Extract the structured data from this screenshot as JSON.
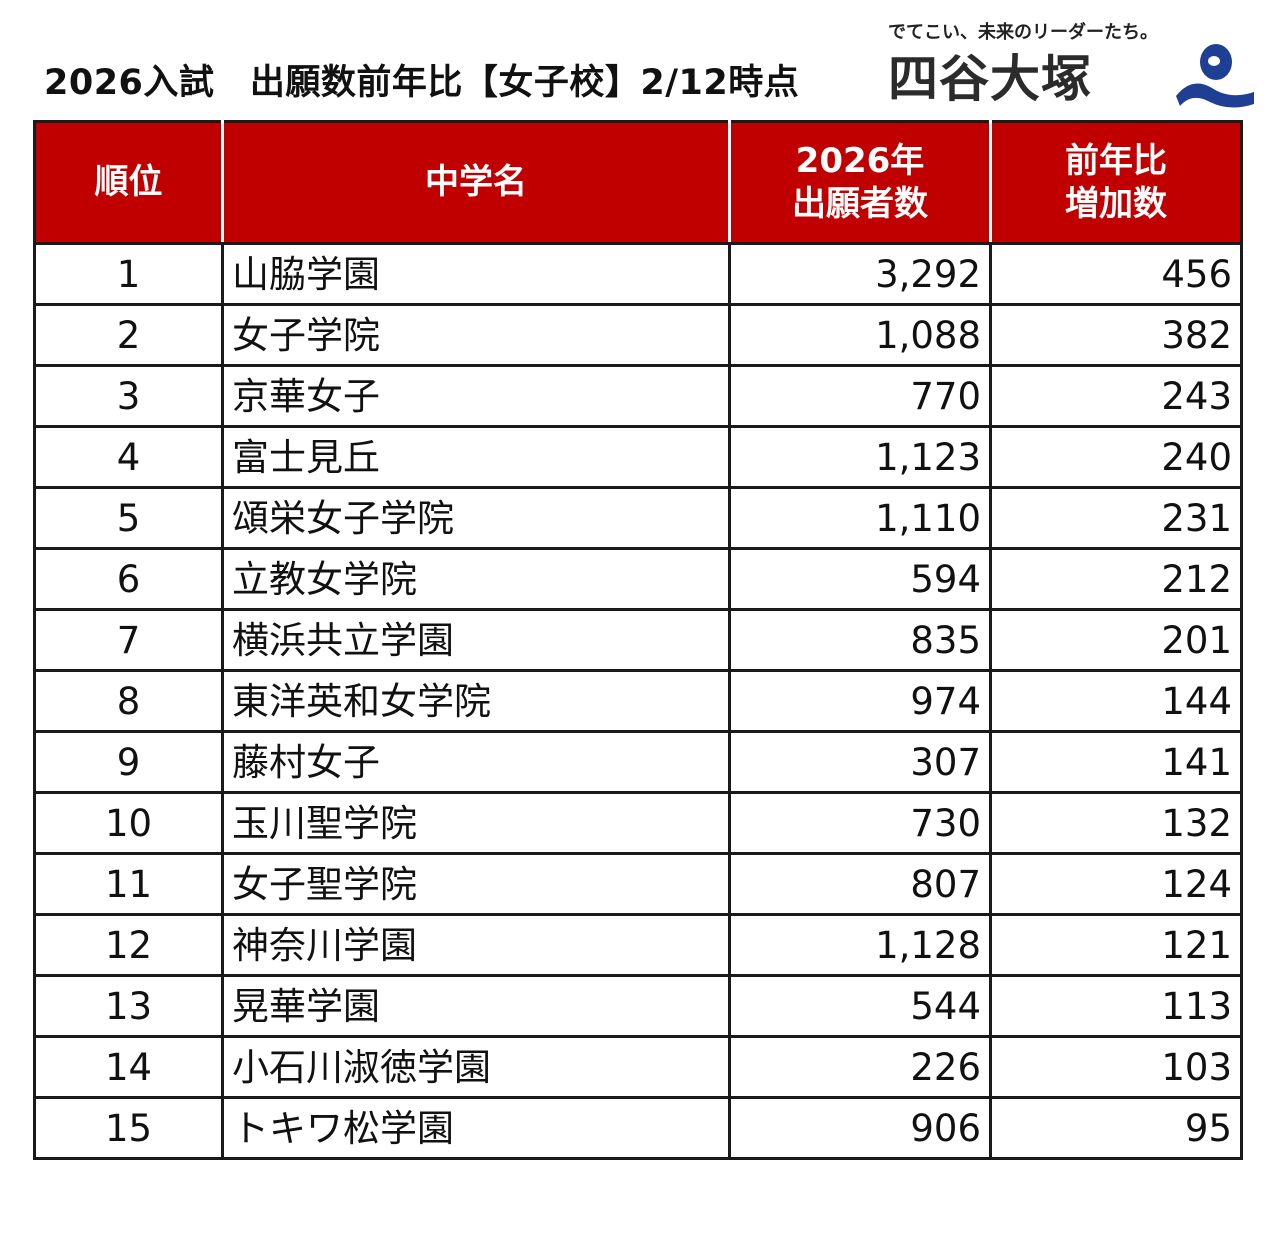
{
  "header": {
    "title": "2026入試　出願数前年比【女子校】2/12時点",
    "tagline": "でてこい、未来のリーダーたち。",
    "brand": "四谷大塚",
    "brand_color": "#1f3f94"
  },
  "table": {
    "header_color": "#c00000",
    "columns": {
      "rank": "順位",
      "school_name": "中学名",
      "applicants_line1": "2026年",
      "applicants_line2": "出願者数",
      "increase_line1": "前年比",
      "increase_line2": "増加数"
    },
    "rows": [
      {
        "rank": "1",
        "name": "山脇学園",
        "applicants": "3,292",
        "increase": "456"
      },
      {
        "rank": "2",
        "name": "女子学院",
        "applicants": "1,088",
        "increase": "382"
      },
      {
        "rank": "3",
        "name": "京華女子",
        "applicants": "770",
        "increase": "243"
      },
      {
        "rank": "4",
        "name": "富士見丘",
        "applicants": "1,123",
        "increase": "240"
      },
      {
        "rank": "5",
        "name": "頌栄女子学院",
        "applicants": "1,110",
        "increase": "231"
      },
      {
        "rank": "6",
        "name": "立教女学院",
        "applicants": "594",
        "increase": "212"
      },
      {
        "rank": "7",
        "name": "横浜共立学園",
        "applicants": "835",
        "increase": "201"
      },
      {
        "rank": "8",
        "name": "東洋英和女学院",
        "applicants": "974",
        "increase": "144"
      },
      {
        "rank": "9",
        "name": "藤村女子",
        "applicants": "307",
        "increase": "141"
      },
      {
        "rank": "10",
        "name": "玉川聖学院",
        "applicants": "730",
        "increase": "132"
      },
      {
        "rank": "11",
        "name": "女子聖学院",
        "applicants": "807",
        "increase": "124"
      },
      {
        "rank": "12",
        "name": "神奈川学園",
        "applicants": "1,128",
        "increase": "121"
      },
      {
        "rank": "13",
        "name": "晃華学園",
        "applicants": "544",
        "increase": "113"
      },
      {
        "rank": "14",
        "name": "小石川淑徳学園",
        "applicants": "226",
        "increase": "103"
      },
      {
        "rank": "15",
        "name": "トキワ松学園",
        "applicants": "906",
        "increase": "95"
      }
    ]
  }
}
